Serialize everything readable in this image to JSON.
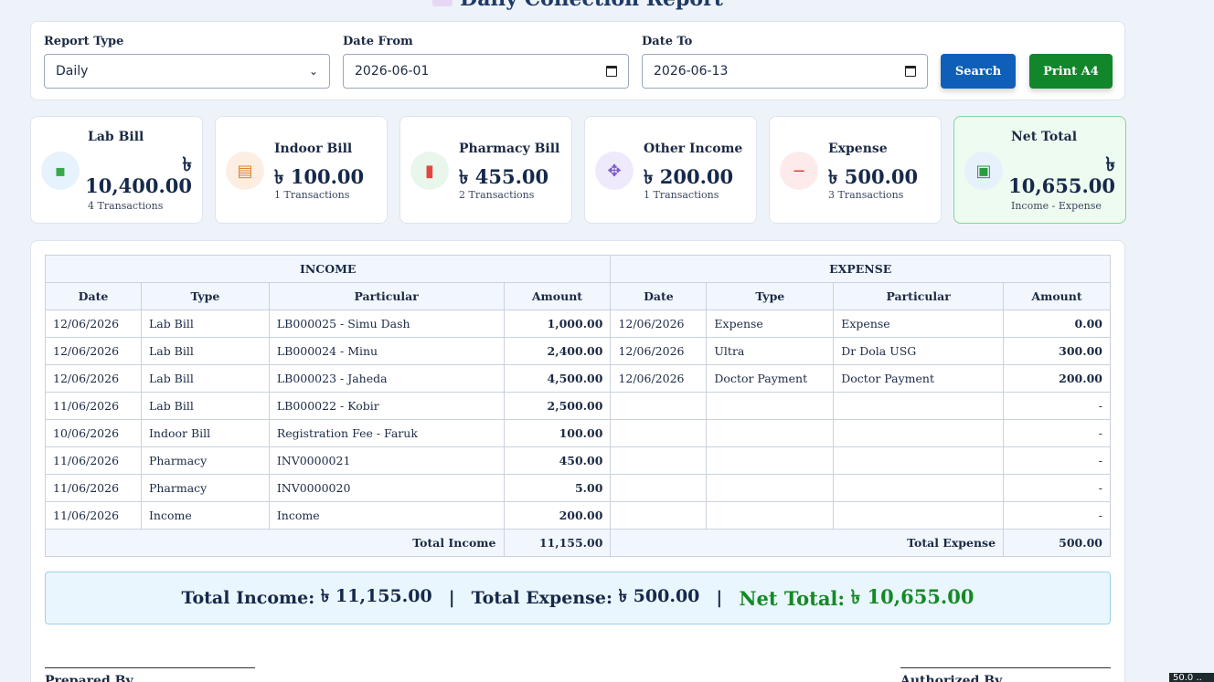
{
  "header": {
    "title": "Daily Collection Report"
  },
  "filters": {
    "report_type_label": "Report Type",
    "report_type_value": "Daily",
    "date_from_label": "Date From",
    "date_from_value": "2026-06-01",
    "date_to_label": "Date To",
    "date_to_value": "2026-06-13",
    "search_label": "Search",
    "print_label": "Print A4"
  },
  "cards": {
    "lab": {
      "title": "Lab Bill",
      "currency": "৳",
      "amount": "10,400.00",
      "sub": "4 Transactions",
      "icon": "test-tube-icon"
    },
    "indoor": {
      "title": "Indoor Bill",
      "amount": "৳ 100.00",
      "sub": "1 Transactions",
      "icon": "bed-icon"
    },
    "pharmacy": {
      "title": "Pharmacy Bill",
      "amount": "৳ 455.00",
      "sub": "2 Transactions",
      "icon": "pill-icon"
    },
    "other": {
      "title": "Other Income",
      "amount": "৳ 200.00",
      "sub": "1 Transactions",
      "icon": "move-arrows-icon"
    },
    "expense": {
      "title": "Expense",
      "amount": "৳ 500.00",
      "sub": "3 Transactions",
      "icon": "minus-icon"
    },
    "net": {
      "title": "Net Total",
      "currency": "৳",
      "amount": "10,655.00",
      "sub": "Income - Expense",
      "icon": "money-icon"
    }
  },
  "table": {
    "income_header": "INCOME",
    "expense_header": "EXPENSE",
    "columns": {
      "date": "Date",
      "type": "Type",
      "particular": "Particular",
      "amount": "Amount"
    },
    "rows": [
      {
        "i_date": "12/06/2026",
        "i_type": "Lab Bill",
        "i_part": "LB000025 - Simu Dash",
        "i_amt": "1,000.00",
        "e_date": "12/06/2026",
        "e_type": "Expense",
        "e_part": "Expense",
        "e_amt": "0.00"
      },
      {
        "i_date": "12/06/2026",
        "i_type": "Lab Bill",
        "i_part": "LB000024 - Minu",
        "i_amt": "2,400.00",
        "e_date": "12/06/2026",
        "e_type": "Ultra",
        "e_part": "Dr Dola USG",
        "e_amt": "300.00"
      },
      {
        "i_date": "12/06/2026",
        "i_type": "Lab Bill",
        "i_part": "LB000023 - Jaheda",
        "i_amt": "4,500.00",
        "e_date": "12/06/2026",
        "e_type": "Doctor Payment",
        "e_part": "Doctor Payment",
        "e_amt": "200.00"
      },
      {
        "i_date": "11/06/2026",
        "i_type": "Lab Bill",
        "i_part": "LB000022 - Kobir",
        "i_amt": "2,500.00",
        "e_date": "",
        "e_type": "",
        "e_part": "",
        "e_amt": "-"
      },
      {
        "i_date": "10/06/2026",
        "i_type": "Indoor Bill",
        "i_part": "Registration Fee - Faruk",
        "i_amt": "100.00",
        "e_date": "",
        "e_type": "",
        "e_part": "",
        "e_amt": "-"
      },
      {
        "i_date": "11/06/2026",
        "i_type": "Pharmacy",
        "i_part": "INV0000021",
        "i_amt": "450.00",
        "e_date": "",
        "e_type": "",
        "e_part": "",
        "e_amt": "-"
      },
      {
        "i_date": "11/06/2026",
        "i_type": "Pharmacy",
        "i_part": "INV0000020",
        "i_amt": "5.00",
        "e_date": "",
        "e_type": "",
        "e_part": "",
        "e_amt": "-"
      },
      {
        "i_date": "11/06/2026",
        "i_type": "Income",
        "i_part": "Income",
        "i_amt": "200.00",
        "e_date": "",
        "e_type": "",
        "e_part": "",
        "e_amt": "-"
      }
    ],
    "total_income_label": "Total Income",
    "total_income_value": "11,155.00",
    "total_expense_label": "Total Expense",
    "total_expense_value": "500.00"
  },
  "summary": {
    "income_label": "Total Income:",
    "income_value": "৳ 11,155.00",
    "sep": "|",
    "expense_label": "Total Expense:",
    "expense_value": "৳ 500.00",
    "net_label": "Net Total:",
    "net_value": "৳ 10,655.00"
  },
  "signatures": {
    "prepared": "Prepared By",
    "authorized": "Authorized By"
  },
  "corner_badge": "50.0 ..",
  "colors": {
    "search_btn": "#0f5fb8",
    "print_btn": "#12862a",
    "net_green": "#138a25"
  }
}
